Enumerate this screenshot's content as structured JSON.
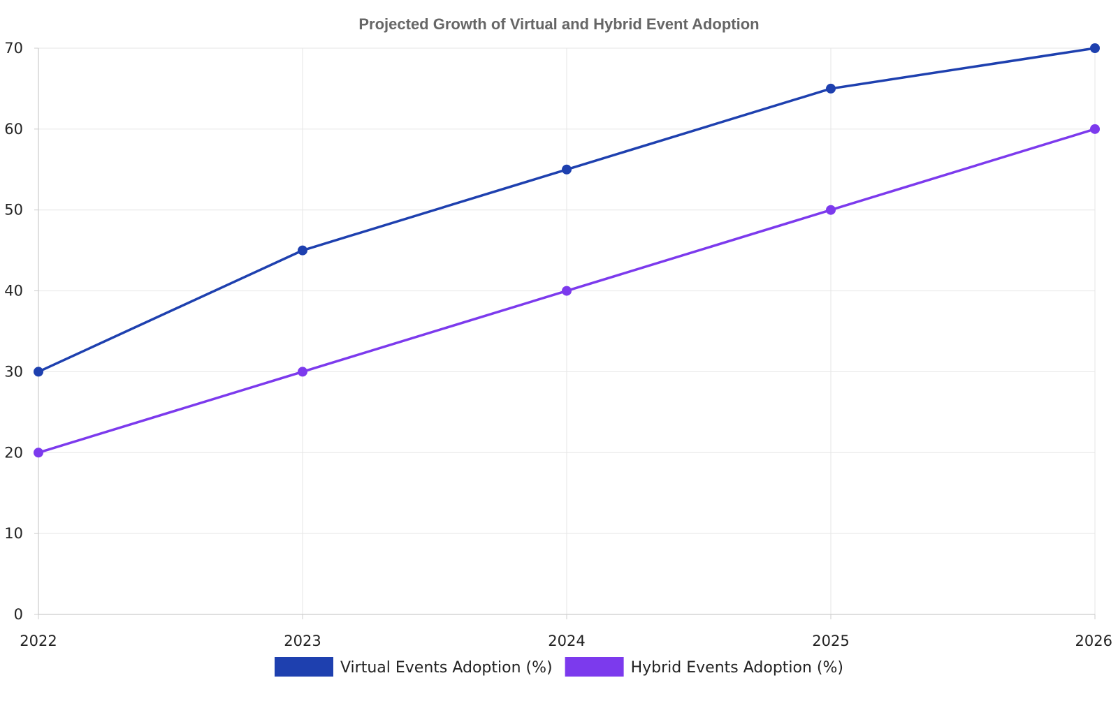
{
  "chart_data": {
    "type": "line",
    "title": "Projected Growth of Virtual and Hybrid Event Adoption",
    "xlabel": "",
    "ylabel": "",
    "x": [
      "2022",
      "2023",
      "2024",
      "2025",
      "2026"
    ],
    "ylim": [
      0,
      70
    ],
    "y_ticks": [
      "0",
      "10",
      "20",
      "30",
      "40",
      "50",
      "60",
      "70"
    ],
    "grid": true,
    "legend_position": "bottom",
    "series": [
      {
        "name": "Virtual Events Adoption (%)",
        "values": [
          30,
          45,
          55,
          65,
          70
        ],
        "color": "#1e40af"
      },
      {
        "name": "Hybrid Events Adoption (%)",
        "values": [
          20,
          30,
          40,
          50,
          60
        ],
        "color": "#7c3aed"
      }
    ]
  }
}
